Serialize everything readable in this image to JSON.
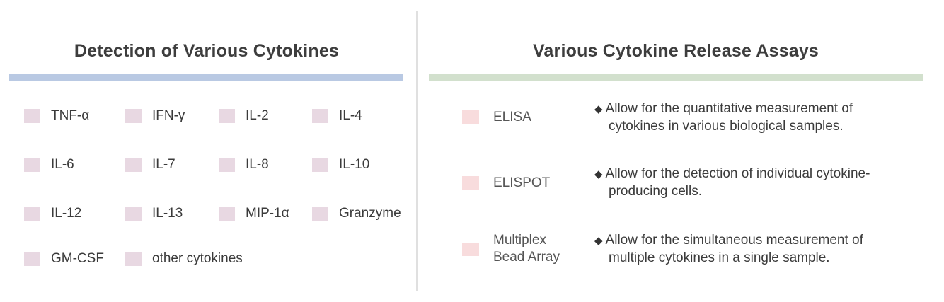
{
  "left": {
    "title": "Detection of Various Cytokines",
    "items": [
      {
        "label": "TNF-α"
      },
      {
        "label": "IFN-γ"
      },
      {
        "label": "IL-2"
      },
      {
        "label": "IL-4"
      },
      {
        "label": "IL-6"
      },
      {
        "label": "IL-7"
      },
      {
        "label": "IL-8"
      },
      {
        "label": "IL-10"
      },
      {
        "label": "IL-12"
      },
      {
        "label": "IL-13"
      },
      {
        "label": "MIP-1α"
      },
      {
        "label": "Granzyme"
      },
      {
        "label": "GM-CSF"
      },
      {
        "label": "other cytokines"
      }
    ]
  },
  "right": {
    "title": "Various Cytokine Release Assays",
    "assays": [
      {
        "name": "ELISA",
        "bullet": "◆",
        "line1": "Allow for the quantitative measurement of",
        "line2": "cytokines in various biological samples."
      },
      {
        "name": "ELISPOT",
        "bullet": "◆",
        "line1": "Allow for the detection of individual cytokine-",
        "line2": "producing cells."
      },
      {
        "name_line1": "Multiplex",
        "name_line2": "Bead Array",
        "bullet": "◆",
        "line1": "Allow for the simultaneous measurement of",
        "line2": "multiple cytokines in a single sample."
      }
    ]
  },
  "colors": {
    "left_bar": "#b9c9e3",
    "right_bar": "#d2e0cd",
    "cytokine_swatch": "#e8d8e2",
    "assay_swatch": "#f8dcdd"
  }
}
